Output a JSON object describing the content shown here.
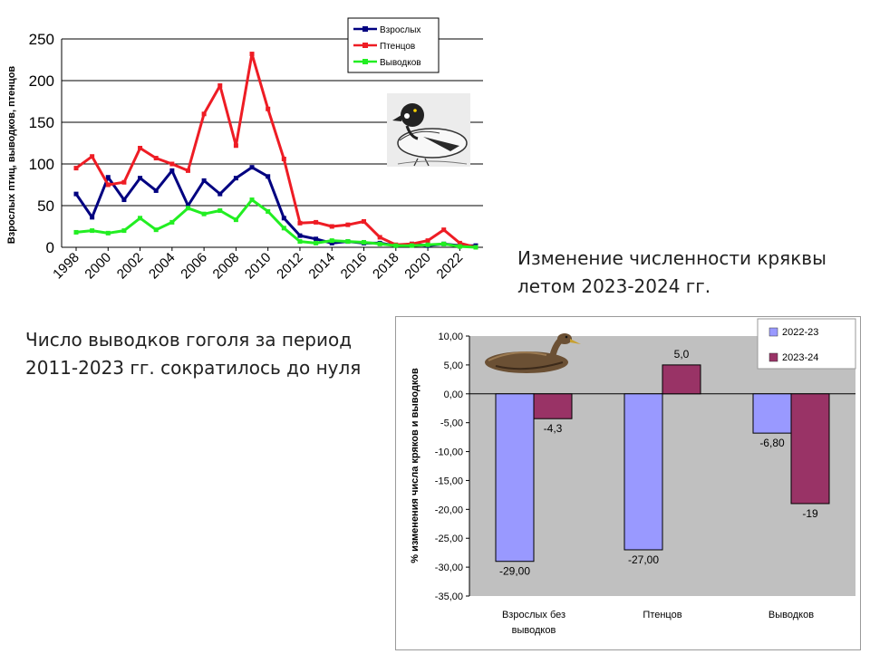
{
  "captions": {
    "left": [
      "Число выводков гоголя за период",
      "2011-2023 гг. сократилось до нуля"
    ],
    "right": [
      "Изменение численности кряквы",
      "летом 2023-2024 гг."
    ]
  },
  "chart_data": [
    {
      "type": "line",
      "ylabel": "Взрослых птиц, выводков, птенцов",
      "ylim": [
        0,
        250
      ],
      "yticks": [
        0,
        50,
        100,
        150,
        200,
        250
      ],
      "xticks": [
        1998,
        2000,
        2002,
        2004,
        2006,
        2008,
        2010,
        2012,
        2014,
        2016,
        2018,
        2020,
        2022
      ],
      "grid": true,
      "legend_position": "top-right",
      "x": [
        1998,
        1999,
        2000,
        2001,
        2002,
        2003,
        2004,
        2005,
        2006,
        2007,
        2008,
        2009,
        2010,
        2011,
        2012,
        2013,
        2014,
        2015,
        2016,
        2017,
        2018,
        2019,
        2020,
        2021,
        2022,
        2023
      ],
      "series": [
        {
          "name": "Взрослых",
          "color": "#000080",
          "values": [
            64,
            36,
            84,
            57,
            83,
            68,
            92,
            50,
            80,
            64,
            83,
            96,
            85,
            35,
            14,
            10,
            5,
            7,
            5,
            5,
            2,
            4,
            2,
            4,
            2,
            2
          ]
        },
        {
          "name": "Птенцов",
          "color": "#ee1c24",
          "values": [
            95,
            109,
            75,
            78,
            119,
            107,
            100,
            92,
            160,
            194,
            122,
            232,
            166,
            106,
            29,
            30,
            25,
            27,
            31,
            12,
            3,
            4,
            8,
            21,
            5,
            0
          ]
        },
        {
          "name": "Выводков",
          "color": "#22ee22",
          "values": [
            18,
            20,
            17,
            20,
            35,
            21,
            30,
            47,
            40,
            44,
            33,
            57,
            43,
            23,
            7,
            5,
            8,
            7,
            6,
            4,
            2,
            2,
            3,
            4,
            1,
            0
          ]
        }
      ]
    },
    {
      "type": "bar",
      "ylabel": "% изменения числа кряков и выводков",
      "ylim": [
        -35,
        10
      ],
      "yticks": [
        "10,00",
        "5,00",
        "0,00",
        "-5,00",
        "-10,00",
        "-15,00",
        "-20,00",
        "-25,00",
        "-30,00",
        "-35,00"
      ],
      "categories": [
        "Взрослых без выводков",
        "Птенцов",
        "Выводков"
      ],
      "category_lines": [
        [
          "Взрослых без",
          "выводков"
        ],
        [
          "Птенцов"
        ],
        [
          "Выводков"
        ]
      ],
      "legend_position": "top-right",
      "series": [
        {
          "name": "2022-23",
          "color": "#9999ff",
          "values": [
            -29.0,
            -27.0,
            -6.8
          ],
          "labels": [
            "-29,00",
            "-27,00",
            "-6,80"
          ]
        },
        {
          "name": "2023-24",
          "color": "#993366",
          "values": [
            -4.3,
            5.0,
            -19.0
          ],
          "labels": [
            "-4,3",
            "5,0",
            "-19"
          ]
        }
      ]
    }
  ]
}
